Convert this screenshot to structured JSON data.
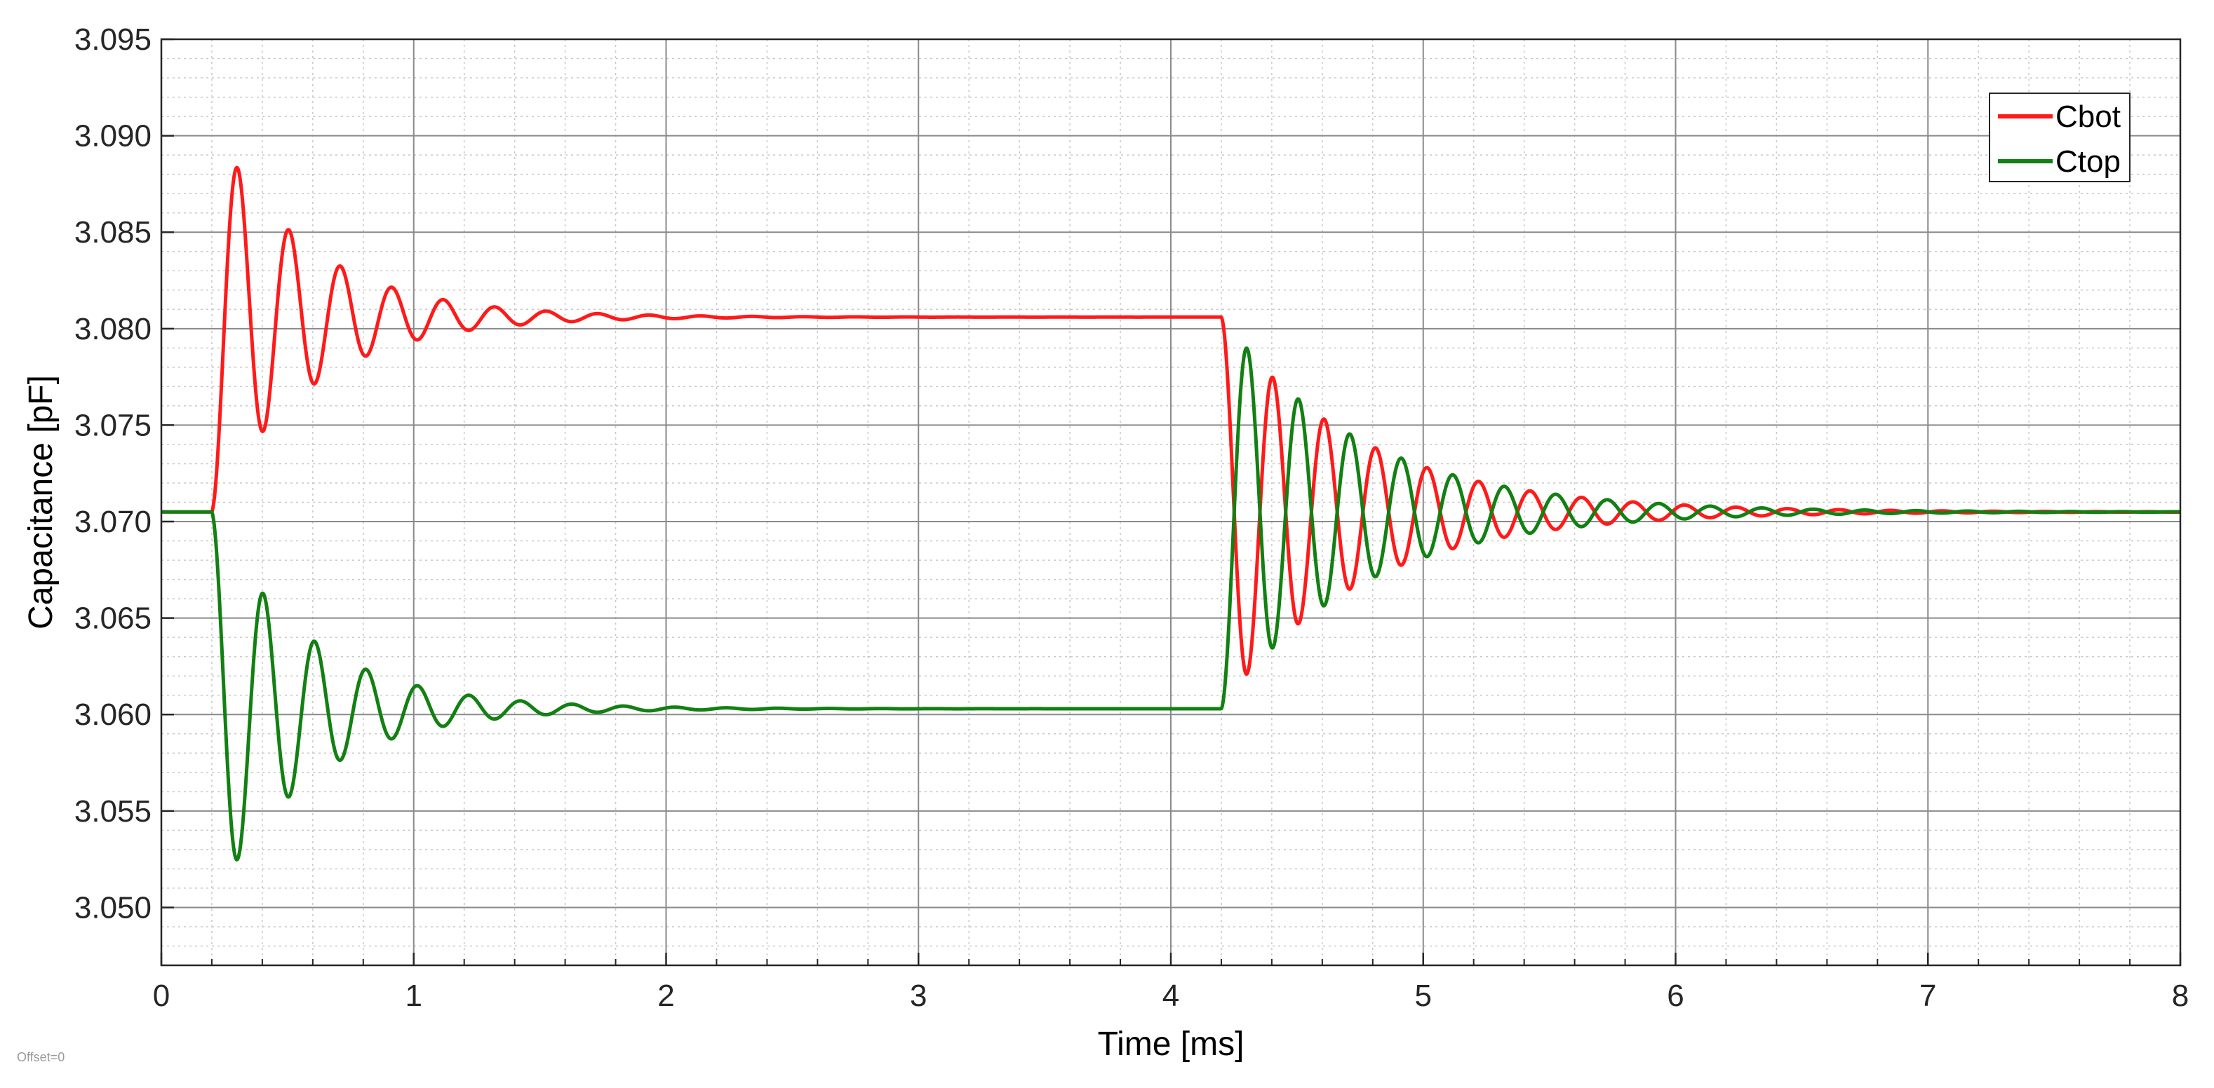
{
  "chart_data": {
    "type": "line",
    "title": "",
    "xlabel": "Time [ms]",
    "ylabel": "Capacitance [pF]",
    "xlim": [
      0,
      8
    ],
    "ylim": [
      3.047,
      3.095
    ],
    "x_ticks": [
      0,
      1,
      2,
      3,
      4,
      5,
      6,
      7,
      8
    ],
    "y_ticks": [
      3.05,
      3.055,
      3.06,
      3.065,
      3.07,
      3.075,
      3.08,
      3.085,
      3.09,
      3.095
    ],
    "y_tick_labels": [
      "3.050",
      "3.055",
      "3.060",
      "3.065",
      "3.070",
      "3.075",
      "3.080",
      "3.085",
      "3.090",
      "3.095"
    ],
    "grid": "major and minor",
    "legend_position": "top-right",
    "note": "Offset=0",
    "series": [
      {
        "name": "Cbot",
        "color": "#ff1a1a",
        "baseline": 3.0705,
        "step1": {
          "t": 0.2,
          "target": 3.0806,
          "freq_khz": 4.9,
          "decay_ms": 0.38
        },
        "step2": {
          "t": 4.2,
          "target": 3.0705,
          "freq_khz": 4.9,
          "decay_ms": 0.55
        }
      },
      {
        "name": "Ctop",
        "color": "#128012",
        "baseline": 3.0705,
        "step1": {
          "t": 0.2,
          "target": 3.0603,
          "freq_khz": 4.9,
          "decay_ms": 0.38
        },
        "step2": {
          "t": 4.2,
          "target": 3.0705,
          "freq_khz": 4.9,
          "decay_ms": 0.55
        }
      }
    ]
  }
}
